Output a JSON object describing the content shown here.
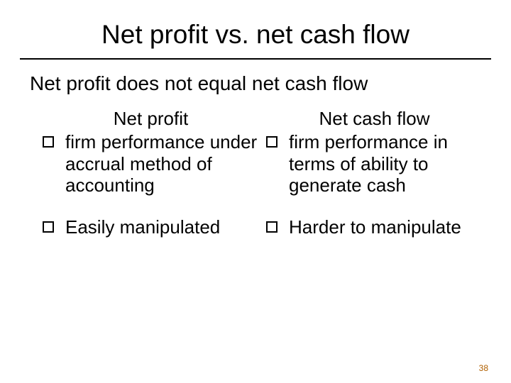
{
  "slide": {
    "title": "Net profit vs. net cash flow",
    "subtitle": "Net profit does not equal net cash flow",
    "left": {
      "header": "Net profit",
      "bullets": [
        "firm performance under accrual method of accounting",
        "Easily manipulated"
      ]
    },
    "right": {
      "header": "Net cash flow",
      "bullets": [
        "firm performance in terms of ability to generate cash",
        "Harder to manipulate"
      ]
    },
    "page_number": "38"
  },
  "style": {
    "background_color": "#ffffff",
    "text_color": "#000000",
    "divider_color": "#000000",
    "page_num_color": "#b06000",
    "title_fontsize": 37,
    "subtitle_fontsize": 28,
    "body_fontsize": 26,
    "pagenum_fontsize": 12,
    "bullet_box_size": 16,
    "bullet_border_width": 2.5,
    "font_family": "Arial, Helvetica, sans-serif"
  }
}
